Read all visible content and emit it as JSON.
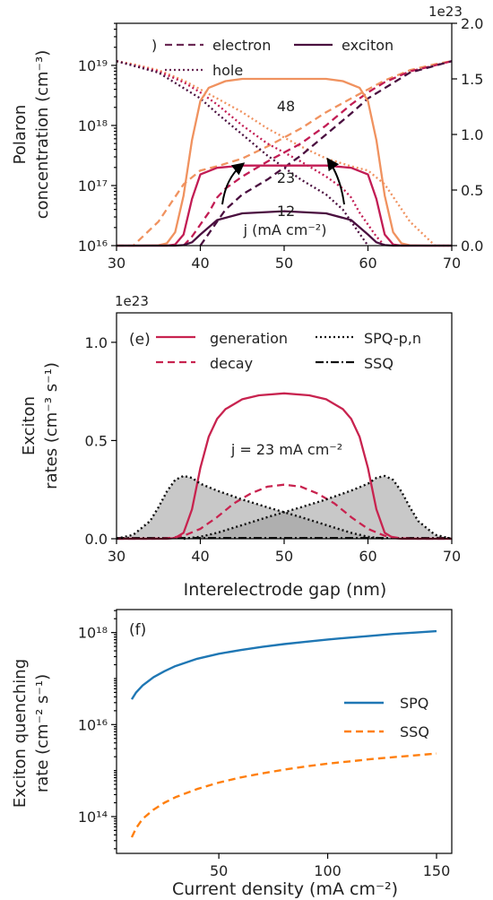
{
  "colors": {
    "c12": "#4a0f3f",
    "c23": "#c21c54",
    "c48": "#f0925f",
    "generation": "#c8234f",
    "spq_fill": "#9a9a9a",
    "spq": "#1f77b4",
    "ssq": "#ff7f0e"
  },
  "chart_data": [
    {
      "id": "panel_d",
      "type": "line",
      "xlabel": "",
      "ylabel_lines": [
        "Polaron",
        "concentration (cm⁻³)"
      ],
      "y_scale": "log",
      "ylim_log10": [
        16,
        19.7
      ],
      "xlim": [
        30,
        70
      ],
      "xticks": [
        30,
        40,
        50,
        60,
        70
      ],
      "ytick_labels": [
        "10¹⁶",
        "10¹⁷",
        "10¹⁸",
        "10¹⁹"
      ],
      "ytick_values": [
        16,
        17,
        18,
        19
      ],
      "right_axis": {
        "offset_label": "1e23",
        "ylim": [
          0,
          2.0
        ],
        "tick_labels": [
          "0.0",
          "0.5",
          "1.0",
          "1.5",
          "2.0"
        ],
        "tick_values": [
          0,
          0.5,
          1.0,
          1.5,
          2.0
        ]
      },
      "legend": {
        "partial_label": ")",
        "entries": [
          {
            "label": "electron",
            "style": "dashed"
          },
          {
            "label": "exciton",
            "style": "solid"
          },
          {
            "label": "hole",
            "style": "dotted"
          }
        ]
      },
      "annotations": [
        "48",
        "23",
        "12",
        "j (mA cm⁻²)"
      ],
      "series": [
        {
          "colorKey": "c48",
          "style": "solid",
          "axis": "right",
          "x": [
            30,
            33,
            35,
            36,
            37,
            38,
            39,
            40,
            41,
            43,
            45,
            50,
            55,
            57,
            59,
            60,
            61,
            62,
            63,
            64,
            65,
            67,
            70
          ],
          "values": [
            0,
            0,
            0.003,
            0.02,
            0.12,
            0.45,
            0.95,
            1.3,
            1.42,
            1.48,
            1.5,
            1.5,
            1.5,
            1.48,
            1.42,
            1.3,
            0.95,
            0.45,
            0.12,
            0.02,
            0.003,
            0,
            0
          ]
        },
        {
          "colorKey": "c23",
          "style": "solid",
          "axis": "right",
          "x": [
            30,
            36,
            37,
            38,
            39,
            40,
            42,
            45,
            50,
            55,
            58,
            60,
            61,
            62,
            63,
            64,
            70
          ],
          "values": [
            0,
            0,
            0.01,
            0.1,
            0.42,
            0.64,
            0.7,
            0.72,
            0.72,
            0.72,
            0.7,
            0.64,
            0.42,
            0.1,
            0.01,
            0,
            0
          ]
        },
        {
          "colorKey": "c12",
          "style": "solid",
          "axis": "right",
          "x": [
            30,
            37,
            38,
            39,
            40,
            42,
            45,
            50,
            55,
            58,
            60,
            61,
            62,
            63,
            70
          ],
          "values": [
            0,
            0,
            0.005,
            0.03,
            0.1,
            0.23,
            0.29,
            0.31,
            0.29,
            0.23,
            0.1,
            0.03,
            0.005,
            0,
            0
          ]
        },
        {
          "colorKey": "c48",
          "style": "dotted",
          "axis": "left",
          "x": [
            30,
            32,
            35,
            38,
            40,
            42,
            45,
            48,
            50,
            52,
            55,
            58,
            60,
            62,
            65,
            68,
            70
          ],
          "values": [
            19.07,
            19.02,
            18.92,
            18.75,
            18.6,
            18.45,
            18.22,
            17.95,
            17.8,
            17.65,
            17.45,
            17.32,
            17.25,
            17.02,
            16.4,
            16.0,
            16.0
          ]
        },
        {
          "colorKey": "c48",
          "style": "dashed",
          "axis": "left",
          "x": [
            30,
            32,
            35,
            38,
            40,
            42,
            45,
            48,
            50,
            52,
            55,
            58,
            60,
            62,
            65,
            68,
            70
          ],
          "values": [
            16.0,
            16.0,
            16.4,
            17.02,
            17.25,
            17.32,
            17.45,
            17.65,
            17.8,
            17.95,
            18.22,
            18.45,
            18.6,
            18.75,
            18.92,
            19.02,
            19.07
          ]
        },
        {
          "colorKey": "c23",
          "style": "dotted",
          "axis": "left",
          "x": [
            30,
            35,
            38,
            40,
            42,
            45,
            48,
            50,
            52,
            55,
            57,
            58,
            59,
            60,
            61,
            62
          ],
          "values": [
            19.07,
            18.9,
            18.72,
            18.55,
            18.35,
            18.0,
            17.7,
            17.55,
            17.4,
            17.15,
            16.95,
            16.8,
            16.55,
            16.35,
            16.15,
            16.0
          ]
        },
        {
          "colorKey": "c23",
          "style": "dashed",
          "axis": "left",
          "x": [
            38,
            39,
            40,
            41,
            42,
            43,
            45,
            48,
            50,
            52,
            55,
            58,
            60,
            62,
            65,
            68,
            70
          ],
          "values": [
            16.0,
            16.15,
            16.35,
            16.55,
            16.8,
            16.95,
            17.15,
            17.4,
            17.55,
            17.7,
            18.0,
            18.35,
            18.55,
            18.72,
            18.9,
            19.0,
            19.07
          ]
        },
        {
          "colorKey": "c12",
          "style": "dotted",
          "axis": "left",
          "x": [
            30,
            35,
            40,
            42,
            45,
            48,
            50,
            52,
            55,
            57,
            58,
            59,
            60
          ],
          "values": [
            19.07,
            18.88,
            18.45,
            18.2,
            17.85,
            17.5,
            17.3,
            17.1,
            16.85,
            16.6,
            16.4,
            16.2,
            16.0
          ]
        },
        {
          "colorKey": "c12",
          "style": "dashed",
          "axis": "left",
          "x": [
            40,
            41,
            42,
            43,
            45,
            48,
            50,
            52,
            55,
            58,
            60,
            65,
            70
          ],
          "values": [
            16.0,
            16.2,
            16.4,
            16.6,
            16.85,
            17.1,
            17.3,
            17.5,
            17.85,
            18.2,
            18.45,
            18.88,
            19.07
          ]
        }
      ]
    },
    {
      "id": "panel_e",
      "type": "area",
      "panel_label": "(e)",
      "xlabel": "Interelectrode gap (nm)",
      "ylabel_lines": [
        "Exciton",
        "rates (cm⁻³ s⁻¹)"
      ],
      "offset_label": "1e23",
      "xlim": [
        30,
        70
      ],
      "ylim": [
        0,
        1.15
      ],
      "xticks": [
        30,
        40,
        50,
        60,
        70
      ],
      "yticks": [
        0.0,
        0.5,
        1.0
      ],
      "ytick_labels": [
        "0.0",
        "0.5",
        "1.0"
      ],
      "legend": [
        {
          "label": "generation",
          "style": "solid"
        },
        {
          "label": "decay",
          "style": "dashed"
        },
        {
          "label": "SPQ-p,n",
          "style": "dotted"
        },
        {
          "label": "SSQ",
          "style": "dashdot"
        }
      ],
      "annotation": "j = 23 mA cm⁻²",
      "series": [
        {
          "name": "generation",
          "style": "solid",
          "x": [
            30,
            36,
            37,
            38,
            39,
            40,
            41,
            42,
            43,
            45,
            47,
            50,
            53,
            55,
            57,
            58,
            59,
            60,
            61,
            62,
            63,
            64,
            70
          ],
          "values": [
            0,
            0,
            0.004,
            0.03,
            0.15,
            0.36,
            0.52,
            0.61,
            0.66,
            0.71,
            0.73,
            0.74,
            0.73,
            0.71,
            0.66,
            0.61,
            0.52,
            0.36,
            0.15,
            0.03,
            0.004,
            0,
            0
          ]
        },
        {
          "name": "decay",
          "style": "dashed",
          "x": [
            30,
            34,
            36,
            38,
            40,
            42,
            44,
            46,
            48,
            50,
            52,
            54,
            56,
            58,
            60,
            62,
            64,
            66,
            70
          ],
          "values": [
            0,
            0,
            0.002,
            0.015,
            0.05,
            0.11,
            0.18,
            0.23,
            0.265,
            0.275,
            0.265,
            0.23,
            0.18,
            0.11,
            0.05,
            0.015,
            0.002,
            0,
            0
          ]
        },
        {
          "name": "SPQ-p",
          "style": "dotted",
          "x": [
            30,
            32,
            34,
            35,
            36,
            37,
            38,
            39,
            40,
            42,
            45,
            48,
            50,
            52,
            55,
            58,
            60,
            62
          ],
          "values": [
            0,
            0.02,
            0.09,
            0.16,
            0.24,
            0.3,
            0.32,
            0.31,
            0.28,
            0.245,
            0.2,
            0.16,
            0.135,
            0.11,
            0.07,
            0.03,
            0.01,
            0
          ]
        },
        {
          "name": "SPQ-n",
          "style": "dotted",
          "x": [
            38,
            40,
            42,
            45,
            48,
            50,
            52,
            55,
            58,
            60,
            61,
            62,
            63,
            64,
            65,
            66,
            68,
            70
          ],
          "values": [
            0,
            0.01,
            0.03,
            0.07,
            0.11,
            0.135,
            0.16,
            0.2,
            0.245,
            0.28,
            0.31,
            0.32,
            0.3,
            0.24,
            0.16,
            0.09,
            0.02,
            0
          ]
        }
      ]
    },
    {
      "id": "panel_f",
      "type": "line",
      "panel_label": "(f)",
      "xlabel": "Current density (mA cm⁻²)",
      "ylabel_lines": [
        "Exciton quenching",
        "rate (cm⁻² s⁻¹)"
      ],
      "y_scale": "log",
      "xlim": [
        3,
        157
      ],
      "ylim_log10": [
        13.2,
        18.5
      ],
      "xticks": [
        50,
        100,
        150
      ],
      "ytick_labels": [
        "10¹⁴",
        "10¹⁶",
        "10¹⁸"
      ],
      "ytick_values": [
        14,
        16,
        18
      ],
      "legend": [
        {
          "label": "SPQ",
          "style": "solid"
        },
        {
          "label": "SSQ",
          "style": "dashed"
        }
      ],
      "series": [
        {
          "name": "SPQ",
          "style": "solid",
          "x": [
            10,
            12,
            15,
            20,
            25,
            30,
            40,
            50,
            60,
            70,
            80,
            90,
            100,
            110,
            120,
            130,
            140,
            150
          ],
          "values": [
            16.55,
            16.7,
            16.85,
            17.03,
            17.16,
            17.27,
            17.43,
            17.54,
            17.62,
            17.69,
            17.75,
            17.8,
            17.85,
            17.89,
            17.93,
            17.97,
            18.0,
            18.03
          ]
        },
        {
          "name": "SSQ",
          "style": "dashed",
          "x": [
            10,
            12,
            15,
            20,
            25,
            30,
            40,
            50,
            60,
            70,
            80,
            90,
            100,
            110,
            120,
            130,
            140,
            150
          ],
          "values": [
            13.55,
            13.75,
            13.95,
            14.15,
            14.3,
            14.42,
            14.6,
            14.74,
            14.85,
            14.94,
            15.02,
            15.09,
            15.15,
            15.2,
            15.25,
            15.29,
            15.33,
            15.37
          ]
        }
      ]
    }
  ]
}
